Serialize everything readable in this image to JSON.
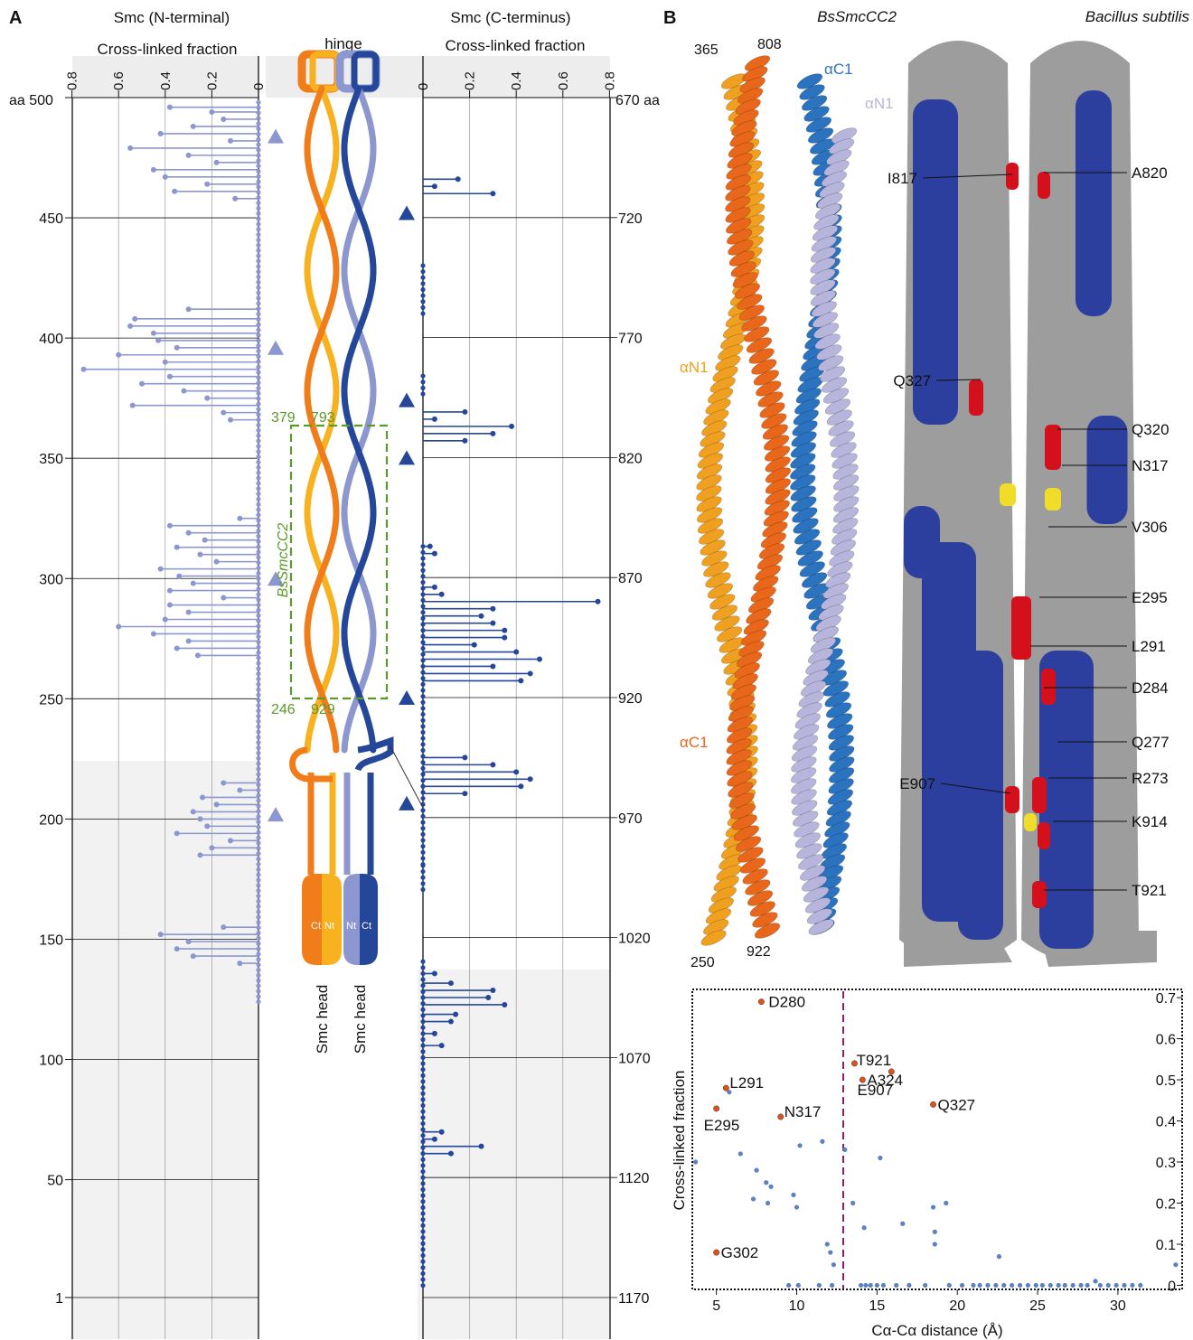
{
  "panel_a": {
    "letter": "A",
    "left_title_1": "Smc (N-terminal)",
    "left_title_2": "Cross-linked fraction",
    "right_title_1": "Smc (C-terminus)",
    "right_title_2": "Cross-linked fraction",
    "hinge_label": "hinge",
    "box_label": "BsSmcCC2",
    "box_corner_labels": [
      "379",
      "793",
      "246",
      "929"
    ],
    "head_labels": [
      "Smc head",
      "Smc head"
    ],
    "head_tags": [
      "Ct",
      "Nt",
      "Nt",
      "Ct"
    ],
    "left_top_unit": "aa 500",
    "right_top_unit": "670 aa",
    "left_ticks": [
      "450",
      "400",
      "350",
      "300",
      "250",
      "200",
      "150",
      "100",
      "50",
      "1"
    ],
    "right_ticks": [
      "720",
      "770",
      "820",
      "870",
      "920",
      "970",
      "1020",
      "1070",
      "1120",
      "1170"
    ],
    "x_ticks": [
      "0",
      "0.2",
      "0.4",
      "0.6",
      "0.8"
    ],
    "colors": {
      "light_blue": "#8c96cf",
      "dark_blue": "#25479a",
      "orange": "#f07d1a",
      "yellow": "#f8b21f",
      "green": "#5a9a2a",
      "shade": "#f2f2f2"
    },
    "left_data": [
      [
        496,
        0.38
      ],
      [
        494,
        0.2
      ],
      [
        491,
        0.15
      ],
      [
        488,
        0.28
      ],
      [
        485,
        0.42
      ],
      [
        482,
        0.12
      ],
      [
        479,
        0.55
      ],
      [
        476,
        0.3
      ],
      [
        473,
        0.18
      ],
      [
        470,
        0.45
      ],
      [
        467,
        0.4
      ],
      [
        464,
        0.22
      ],
      [
        461,
        0.36
      ],
      [
        458,
        0.1
      ],
      [
        412,
        0.3
      ],
      [
        408,
        0.53
      ],
      [
        405,
        0.55
      ],
      [
        402,
        0.45
      ],
      [
        399,
        0.43
      ],
      [
        396,
        0.35
      ],
      [
        393,
        0.6
      ],
      [
        390,
        0.4
      ],
      [
        387,
        0.75
      ],
      [
        384,
        0.38
      ],
      [
        381,
        0.5
      ],
      [
        378,
        0.32
      ],
      [
        375,
        0.22
      ],
      [
        372,
        0.54
      ],
      [
        369,
        0.15
      ],
      [
        366,
        0.12
      ],
      [
        325,
        0.08
      ],
      [
        322,
        0.38
      ],
      [
        319,
        0.3
      ],
      [
        316,
        0.23
      ],
      [
        313,
        0.35
      ],
      [
        310,
        0.25
      ],
      [
        307,
        0.18
      ],
      [
        304,
        0.42
      ],
      [
        301,
        0.34
      ],
      [
        298,
        0.28
      ],
      [
        295,
        0.38
      ],
      [
        292,
        0.15
      ],
      [
        289,
        0.38
      ],
      [
        286,
        0.3
      ],
      [
        283,
        0.4
      ],
      [
        280,
        0.6
      ],
      [
        277,
        0.45
      ],
      [
        274,
        0.3
      ],
      [
        271,
        0.35
      ],
      [
        268,
        0.26
      ],
      [
        215,
        0.15
      ],
      [
        212,
        0.08
      ],
      [
        209,
        0.24
      ],
      [
        206,
        0.18
      ],
      [
        203,
        0.28
      ],
      [
        200,
        0.25
      ],
      [
        197,
        0.22
      ],
      [
        194,
        0.35
      ],
      [
        191,
        0.12
      ],
      [
        188,
        0.2
      ],
      [
        185,
        0.25
      ],
      [
        155,
        0.15
      ],
      [
        152,
        0.42
      ],
      [
        149,
        0.3
      ],
      [
        146,
        0.35
      ],
      [
        143,
        0.28
      ],
      [
        140,
        0.08
      ]
    ],
    "right_data": [
      [
        710,
        0.3
      ],
      [
        707,
        0.05
      ],
      [
        704,
        0.15
      ],
      [
        860,
        0.05
      ],
      [
        857,
        0.03
      ],
      [
        813,
        0.18
      ],
      [
        810,
        0.3
      ],
      [
        807,
        0.38
      ],
      [
        804,
        0.05
      ],
      [
        801,
        0.18
      ],
      [
        913,
        0.42
      ],
      [
        910,
        0.46
      ],
      [
        907,
        0.3
      ],
      [
        904,
        0.5
      ],
      [
        901,
        0.4
      ],
      [
        898,
        0.22
      ],
      [
        895,
        0.35
      ],
      [
        892,
        0.35
      ],
      [
        889,
        0.3
      ],
      [
        886,
        0.25
      ],
      [
        883,
        0.3
      ],
      [
        880,
        0.75
      ],
      [
        877,
        0.08
      ],
      [
        874,
        0.05
      ],
      [
        960,
        0.18
      ],
      [
        957,
        0.42
      ],
      [
        954,
        0.46
      ],
      [
        951,
        0.4
      ],
      [
        948,
        0.3
      ],
      [
        945,
        0.18
      ],
      [
        1065,
        0.08
      ],
      [
        1060,
        0.05
      ],
      [
        1055,
        0.12
      ],
      [
        1052,
        0.14
      ],
      [
        1048,
        0.35
      ],
      [
        1045,
        0.28
      ],
      [
        1042,
        0.3
      ],
      [
        1039,
        0.12
      ],
      [
        1035,
        0.05
      ],
      [
        1110,
        0.12
      ],
      [
        1107,
        0.25
      ],
      [
        1104,
        0.05
      ],
      [
        1101,
        0.08
      ]
    ],
    "left_triangles": [
      484,
      396,
      300,
      202
    ],
    "right_triangles": [
      718,
      796,
      820,
      920,
      964
    ]
  },
  "panel_b": {
    "letter": "B",
    "struct_title": "BsSmcCC2",
    "species_title": "Bacillus subtilis",
    "ribbon_labels": [
      "365",
      "808",
      "αC1",
      "αN1",
      "αN1",
      "αC1",
      "250",
      "922"
    ],
    "surface_labels_left": [
      "I817",
      "Q327",
      "E907"
    ],
    "surface_labels_right": [
      "A820",
      "Q320",
      "N317",
      "V306",
      "E295",
      "L291",
      "D284",
      "Q277",
      "R273",
      "K914",
      "T921"
    ],
    "colors": {
      "gold": "#f0a020",
      "orange": "#e8671a",
      "blue": "#2b73bf",
      "lavender": "#b8b5dd",
      "surface_gray": "#9d9d9d",
      "surface_blue": "#2c3e9e",
      "red": "#d4101c",
      "yellow": "#f2dc2a"
    }
  },
  "chart_data": {
    "type": "scatter",
    "xlabel": "Cα-Cα distance (Å)",
    "ylabel": "Cross-linked fraction",
    "xlim": [
      3.5,
      34
    ],
    "ylim": [
      -0.01,
      0.72
    ],
    "x_ticks": [
      5,
      10,
      15,
      20,
      25,
      30
    ],
    "y_ticks": [
      0.0,
      0.1,
      0.2,
      0.3,
      0.4,
      0.5,
      0.6,
      0.7
    ],
    "threshold_x": 12.9,
    "points": [
      [
        3.7,
        0.3
      ],
      [
        5.8,
        0.47
      ],
      [
        6.5,
        0.32
      ],
      [
        7.3,
        0.21
      ],
      [
        8.2,
        0.2
      ],
      [
        7.5,
        0.28
      ],
      [
        8.1,
        0.25
      ],
      [
        8.4,
        0.24
      ],
      [
        10.2,
        0.34
      ],
      [
        11.6,
        0.35
      ],
      [
        9.8,
        0.22
      ],
      [
        10.0,
        0.19
      ],
      [
        11.9,
        0.1
      ],
      [
        12.1,
        0.08
      ],
      [
        12.3,
        0.05
      ],
      [
        13.0,
        0.33
      ],
      [
        13.5,
        0.2
      ],
      [
        14.2,
        0.14
      ],
      [
        15.2,
        0.31
      ],
      [
        16.6,
        0.15
      ],
      [
        18.5,
        0.19
      ],
      [
        18.6,
        0.13
      ],
      [
        18.6,
        0.1
      ],
      [
        19.3,
        0.2
      ],
      [
        22.6,
        0.07
      ],
      [
        28.6,
        0.01
      ],
      [
        33.6,
        0.05
      ]
    ],
    "zero_points": [
      9.5,
      10.1,
      11.4,
      12.2,
      14.0,
      14.3,
      14.6,
      15.0,
      15.4,
      16.2,
      17.0,
      18.0,
      19.5,
      20.3,
      21.0,
      21.4,
      21.9,
      22.4,
      22.9,
      23.4,
      23.9,
      24.4,
      24.9,
      25.3,
      25.8,
      26.3,
      26.7,
      27.2,
      27.7,
      28.1,
      28.9,
      29.4,
      29.9,
      30.4,
      30.9,
      31.4
    ],
    "labeled": [
      {
        "label": "D280",
        "x": 7.8,
        "y": 0.69
      },
      {
        "label": "T921",
        "x": 13.6,
        "y": 0.54
      },
      {
        "label": "A324",
        "x": 14.1,
        "y": 0.5
      },
      {
        "label": "E907",
        "x": 15.9,
        "y": 0.52
      },
      {
        "label": "Q327",
        "x": 18.5,
        "y": 0.44
      },
      {
        "label": "L291",
        "x": 5.6,
        "y": 0.48
      },
      {
        "label": "E295",
        "x": 5.0,
        "y": 0.43
      },
      {
        "label": "N317",
        "x": 9.0,
        "y": 0.41
      },
      {
        "label": "G302",
        "x": 5.0,
        "y": 0.08
      }
    ]
  }
}
